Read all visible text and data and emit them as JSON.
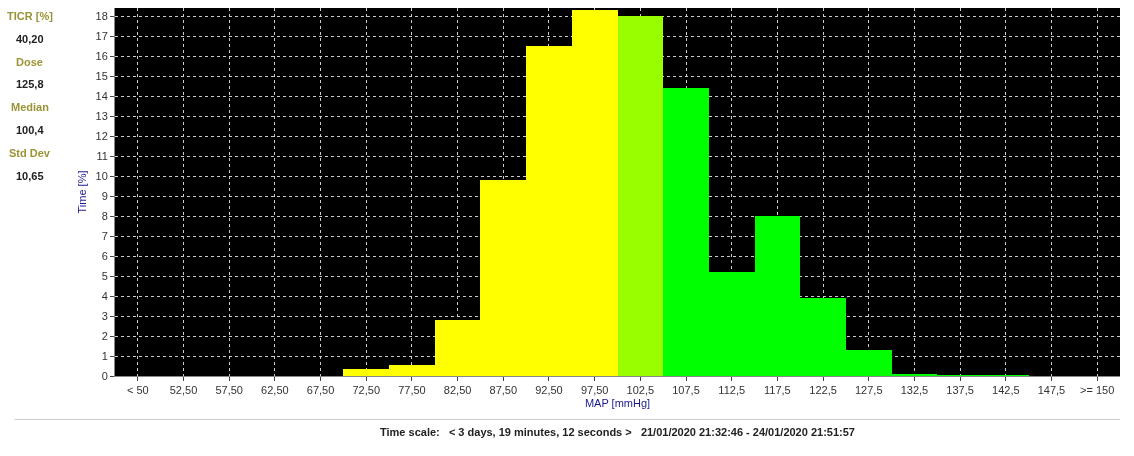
{
  "chart_data": {
    "type": "bar",
    "xlabel": "MAP [mmHg]",
    "ylabel": "Time [%]",
    "categories": [
      "< 50",
      "52,50",
      "57,50",
      "62,50",
      "67,50",
      "72,50",
      "77,50",
      "82,50",
      "87,50",
      "92,50",
      "97,50",
      "102,5",
      "107,5",
      "112,5",
      "117,5",
      "122,5",
      "127,5",
      "132,5",
      "137,5",
      "142,5",
      "147,5",
      ">= 150"
    ],
    "values": [
      0,
      0,
      0,
      0,
      0,
      0.34,
      0.56,
      2.8,
      9.8,
      16.5,
      18.3,
      18.0,
      14.4,
      5.2,
      8.0,
      3.9,
      1.3,
      0.12,
      0.05,
      0.05,
      0,
      0
    ],
    "colors": [
      "#ffff00",
      "#ffff00",
      "#ffff00",
      "#ffff00",
      "#ffff00",
      "#ffff00",
      "#ffff00",
      "#ffff00",
      "#ffff00",
      "#ffff00",
      "#ffff00",
      "#99ff00",
      "#00ff00",
      "#00ff00",
      "#00ff00",
      "#00ff00",
      "#00ff00",
      "#00ff00",
      "#00ff00",
      "#00ff00",
      "#00ff00",
      "#00ff00"
    ],
    "ylim": [
      0,
      18.4
    ],
    "yticks": [
      0,
      1,
      2,
      3,
      4,
      5,
      6,
      7,
      8,
      9,
      10,
      11,
      12,
      13,
      14,
      15,
      16,
      17,
      18
    ],
    "grid": true,
    "annotations": [
      "TICR [%]",
      "40,20",
      "Dose",
      "125,8",
      "Median",
      "100,4",
      "Std Dev",
      "10,65",
      "Time scale:   < 3 days, 19 minutes, 12 seconds >   21/01/2020 21:32:46 - 24/01/2020 21:51:57"
    ]
  }
}
